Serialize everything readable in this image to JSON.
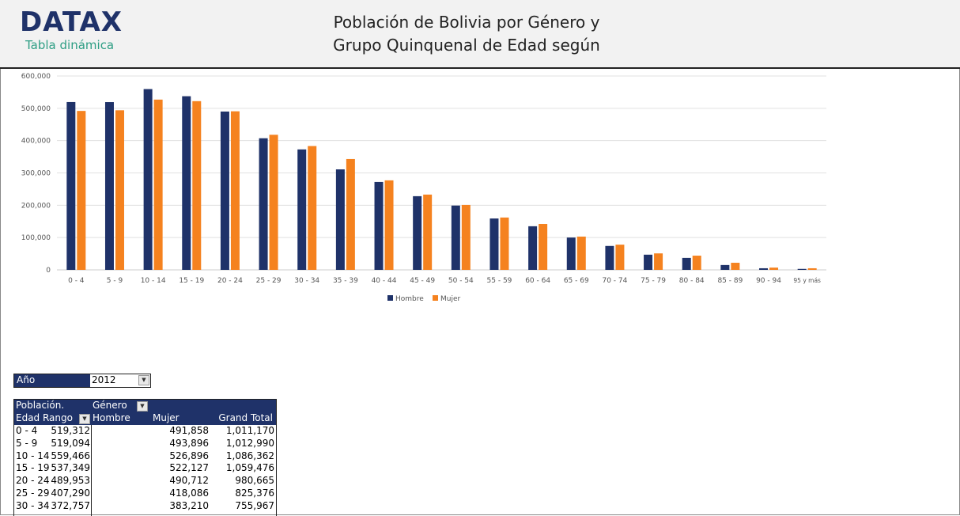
{
  "header": {
    "logo": "DATAX",
    "subtitle": "Tabla dinámica",
    "title_line1": "Población de Bolivia por Género y",
    "title_line2": "Grupo Quinquenal de Edad según"
  },
  "colors": {
    "hombre": "#1f3269",
    "mujer": "#f5821f",
    "header_bg": "#1f3269"
  },
  "chart_data": {
    "type": "bar",
    "ylim": [
      0,
      600000
    ],
    "yticks": [
      "0",
      "100,000",
      "200,000",
      "300,000",
      "400,000",
      "500,000",
      "600,000"
    ],
    "grid": true,
    "legend": "bottom",
    "categories": [
      "0 - 4",
      "5 - 9",
      "10 - 14",
      "15 - 19",
      "20 - 24",
      "25 - 29",
      "30 - 34",
      "35 - 39",
      "40 - 44",
      "45 - 49",
      "50 - 54",
      "55 - 59",
      "60 - 64",
      "65 - 69",
      "70 - 74",
      "75 - 79",
      "80 - 84",
      "85 - 89",
      "90 - 94",
      "95 y más"
    ],
    "series": [
      {
        "name": "Hombre",
        "values": [
          519312,
          519094,
          559466,
          537349,
          489953,
          407290,
          372757,
          311000,
          272000,
          228000,
          199000,
          159000,
          135000,
          100000,
          74000,
          47000,
          37000,
          15000,
          5000,
          3000
        ]
      },
      {
        "name": "Mujer",
        "values": [
          491858,
          493896,
          526896,
          522127,
          490712,
          418086,
          383210,
          343000,
          277000,
          233000,
          201000,
          162000,
          142000,
          103000,
          78000,
          51000,
          44000,
          22000,
          7000,
          5000
        ]
      }
    ]
  },
  "filter": {
    "label": "Año",
    "value": "2012"
  },
  "pivot": {
    "h1": "Población.",
    "h2": "Género",
    "h3": "Edad Rango",
    "cols": [
      "Hombre",
      "Mujer",
      "Grand Total"
    ],
    "rows": [
      [
        "0 - 4",
        "519,312",
        "491,858",
        "1,011,170"
      ],
      [
        "5 - 9",
        "519,094",
        "493,896",
        "1,012,990"
      ],
      [
        "10 - 14",
        "559,466",
        "526,896",
        "1,086,362"
      ],
      [
        "15 - 19",
        "537,349",
        "522,127",
        "1,059,476"
      ],
      [
        "20 - 24",
        "489,953",
        "490,712",
        "980,665"
      ],
      [
        "25 - 29",
        "407,290",
        "418,086",
        "825,376"
      ],
      [
        "30 - 34",
        "372,757",
        "383,210",
        "755,967"
      ]
    ]
  }
}
